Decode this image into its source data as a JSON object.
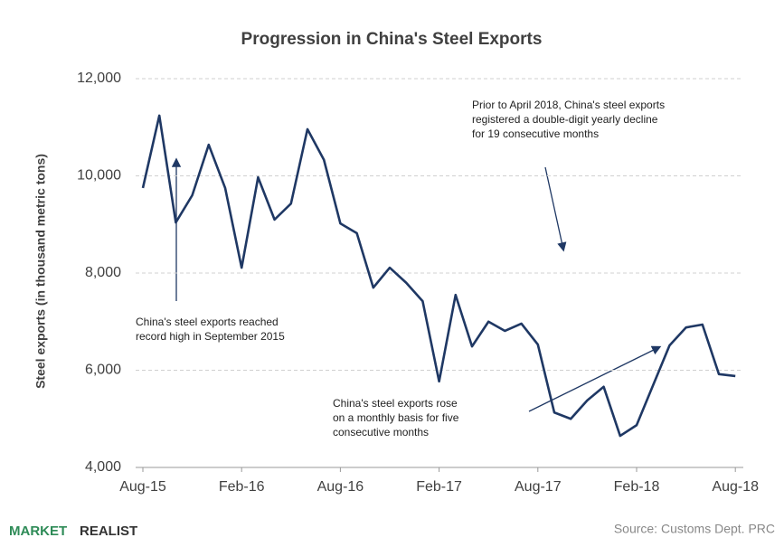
{
  "chart_data": {
    "type": "line",
    "title": "Progression in China's Steel Exports",
    "y_label": "Steel exports (in thousand metric tons)",
    "categories": [
      "Aug-15",
      null,
      null,
      null,
      null,
      null,
      "Feb-16",
      null,
      null,
      null,
      null,
      null,
      "Aug-16",
      null,
      null,
      null,
      null,
      null,
      "Feb-17",
      null,
      null,
      null,
      null,
      null,
      "Aug-17",
      null,
      null,
      null,
      null,
      null,
      "Feb-18",
      null,
      null,
      null,
      null,
      null,
      "Aug-18"
    ],
    "series": [
      {
        "name": "Steel exports",
        "color": "#1f3864",
        "values": [
          9750,
          11240,
          9040,
          9600,
          10640,
          9750,
          8110,
          9970,
          9100,
          9430,
          10960,
          10330,
          9020,
          8820,
          7700,
          8110,
          7800,
          7420,
          5770,
          7550,
          6490,
          7000,
          6810,
          6960,
          6530,
          5130,
          5000,
          5380,
          5660,
          4650,
          4870,
          5690,
          6510,
          6880,
          6940,
          5920,
          5880
        ]
      }
    ],
    "ylim": [
      4000,
      12000
    ],
    "yticks": [
      {
        "value": 4000,
        "label": "4,000"
      },
      {
        "value": 6000,
        "label": "6,000"
      },
      {
        "value": 8000,
        "label": "8,000"
      },
      {
        "value": 10000,
        "label": "10,000"
      },
      {
        "value": 12000,
        "label": "12,000"
      }
    ],
    "grid": true,
    "annotations": [
      {
        "lines": [
          "China's steel exports reached",
          "record high in September 2015"
        ]
      },
      {
        "lines": [
          "Prior to April 2018, China's steel exports",
          "registered a double-digit yearly decline",
          "for 19 consecutive months"
        ]
      },
      {
        "lines": [
          "China's steel exports rose",
          "on a monthly basis for five",
          "consecutive months"
        ]
      }
    ]
  },
  "footer": {
    "brand": [
      "MARKET",
      "REALIST"
    ],
    "source": "Source: Customs Dept. PRC"
  }
}
